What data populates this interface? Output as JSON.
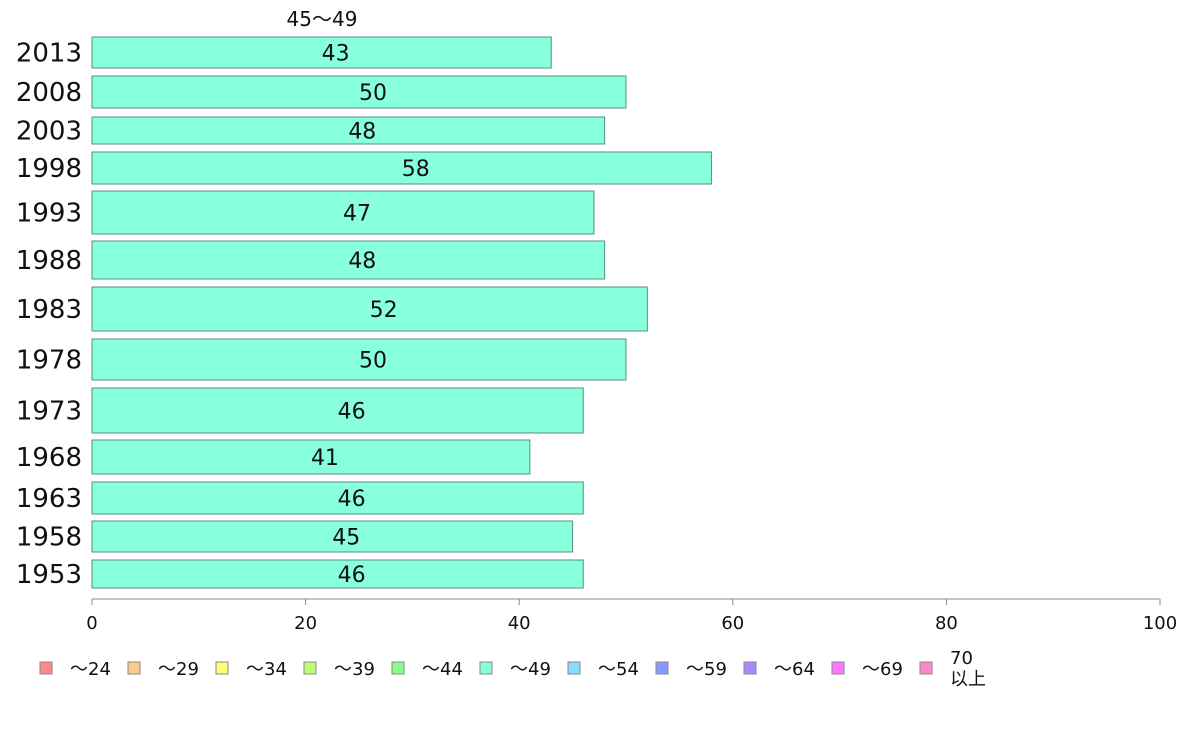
{
  "chart_data": {
    "type": "bar",
    "orientation": "horizontal",
    "header_label": "45〜49",
    "categories": [
      "2013",
      "2008",
      "2003",
      "1998",
      "1993",
      "1988",
      "1983",
      "1978",
      "1973",
      "1968",
      "1963",
      "1958",
      "1953"
    ],
    "values": [
      43,
      50,
      48,
      58,
      47,
      48,
      52,
      50,
      46,
      41,
      46,
      45,
      46
    ],
    "data_labels": [
      "43",
      "50",
      "48",
      "58",
      "47",
      "48",
      "52",
      "50",
      "46",
      "41",
      "46",
      "45",
      "46"
    ],
    "bar_color": "#88ffdd",
    "xlim": [
      0,
      100
    ],
    "xticks": [
      0,
      20,
      40,
      60,
      80,
      100
    ],
    "grid": false,
    "legend_position": "bottom",
    "legend": [
      {
        "label": "〜24",
        "color": "#ff8888"
      },
      {
        "label": "〜29",
        "color": "#ffcc88"
      },
      {
        "label": "〜34",
        "color": "#ffff77"
      },
      {
        "label": "〜39",
        "color": "#bbff77"
      },
      {
        "label": "〜44",
        "color": "#88ff88"
      },
      {
        "label": "〜49",
        "color": "#88ffdd"
      },
      {
        "label": "〜54",
        "color": "#88ddff"
      },
      {
        "label": "〜59",
        "color": "#8899ff"
      },
      {
        "label": "〜64",
        "color": "#aa88ff"
      },
      {
        "label": "〜69",
        "color": "#ff77ff"
      },
      {
        "label": "70\n以上",
        "color": "#ff88cc"
      }
    ]
  }
}
